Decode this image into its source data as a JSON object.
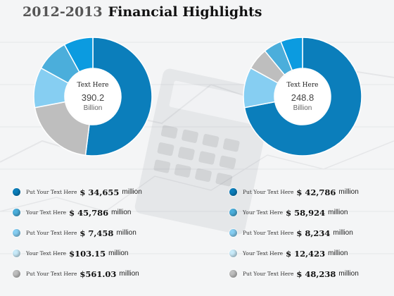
{
  "title": {
    "years": "2012-2013",
    "main": "Financial Highlights"
  },
  "colors": [
    "#0B7EBB",
    "#4BAEDB",
    "#86CEF2",
    "#C8EAF9",
    "#BEBEBE"
  ],
  "chart_data": [
    {
      "type": "pie",
      "center_label": "Text Here",
      "center_value": "390.2",
      "center_unit": "Billion",
      "slices": [
        {
          "color": "#0B7EBB",
          "value": 52
        },
        {
          "color": "#BEBEBE",
          "value": 20
        },
        {
          "color": "#86CEF2",
          "value": 11
        },
        {
          "color": "#4BAEDB",
          "value": 9
        },
        {
          "color": "#0B9BE0",
          "value": 8
        }
      ]
    },
    {
      "type": "pie",
      "center_label": "Text Here",
      "center_value": "248.8",
      "center_unit": "Billion",
      "slices": [
        {
          "color": "#0B7EBB",
          "value": 72
        },
        {
          "color": "#86CEF2",
          "value": 11
        },
        {
          "color": "#BEBEBE",
          "value": 6
        },
        {
          "color": "#4BAEDB",
          "value": 5
        },
        {
          "color": "#0B9BE0",
          "value": 6
        }
      ]
    }
  ],
  "legend_left": [
    {
      "text": "Put Your Text Here",
      "amount": "$ 34,655",
      "unit": "million"
    },
    {
      "text": "Your Text Here",
      "amount": "$ 45,786",
      "unit": "million"
    },
    {
      "text": "Put Your Text Here",
      "amount": "$ 7,458",
      "unit": "million"
    },
    {
      "text": "Your Text Here",
      "amount": "$103.15",
      "unit": "million"
    },
    {
      "text": "Put Your Text Here",
      "amount": "$561.03",
      "unit": "million"
    }
  ],
  "legend_right": [
    {
      "text": "Put Your Text Here",
      "amount": "$ 42,786",
      "unit": "million"
    },
    {
      "text": "Your Text Here",
      "amount": "$ 58,924",
      "unit": "million"
    },
    {
      "text": "Put Your Text Here",
      "amount": "$ 8,234",
      "unit": "million"
    },
    {
      "text": "Your Text Here",
      "amount": "$ 12,423",
      "unit": "million"
    },
    {
      "text": "Put Your Text Here",
      "amount": "$ 48,238",
      "unit": "million"
    }
  ]
}
